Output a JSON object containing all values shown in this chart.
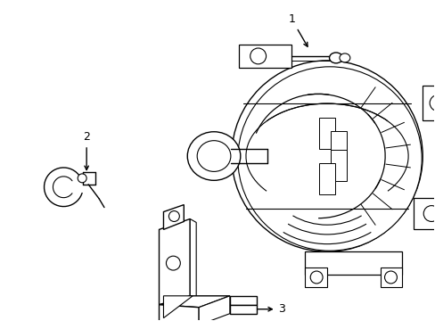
{
  "background_color": "#ffffff",
  "line_color": "#000000",
  "line_width": 1.0,
  "label_1": "1",
  "label_2": "2",
  "label_3": "3"
}
